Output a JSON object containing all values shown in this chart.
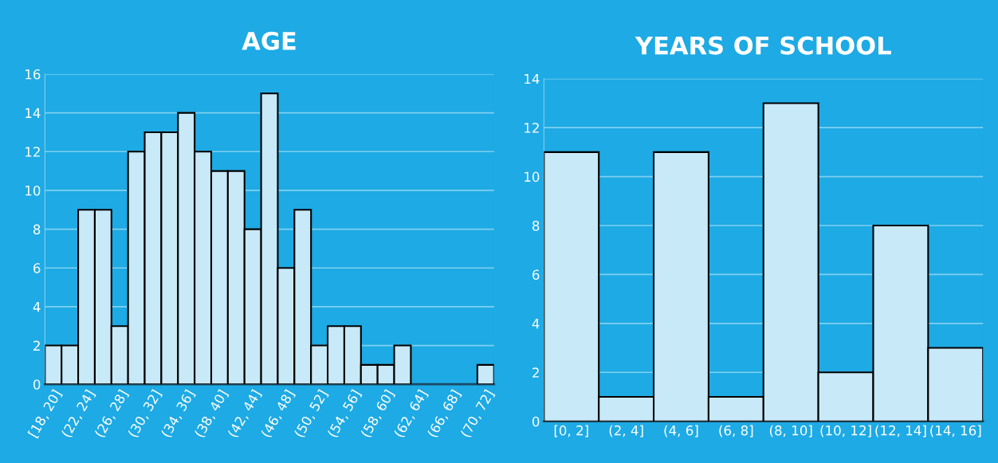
{
  "chart_data": [
    {
      "type": "bar",
      "title": "AGE",
      "categories": [
        "[18, 20]",
        null,
        "(22, 24]",
        null,
        "(26, 28]",
        null,
        "(30, 32]",
        null,
        "(34, 36]",
        null,
        "(38, 40]",
        null,
        "(42, 44]",
        null,
        "(46, 48]",
        null,
        "(50, 52]",
        null,
        "(54, 56]",
        null,
        "(58, 60]",
        null,
        "(62, 64]",
        null,
        "(66, 68]",
        null,
        "(70, 72]"
      ],
      "values": [
        2,
        2,
        9,
        9,
        3,
        12,
        13,
        13,
        14,
        12,
        11,
        11,
        8,
        15,
        6,
        9,
        2,
        3,
        3,
        1,
        1,
        2,
        0,
        0,
        0,
        0,
        1
      ],
      "color": "#c8e9f7",
      "ylim": [
        0,
        16
      ],
      "yticks": [
        0,
        2,
        4,
        6,
        8,
        10,
        12,
        14,
        16
      ],
      "grid": "y"
    },
    {
      "type": "bar",
      "title": "YEARS OF SCHOOL",
      "categories": [
        "[0, 2]",
        "(2, 4]",
        "(4, 6]",
        "(6, 8]",
        "(8, 10]",
        "(10, 12]",
        "(12, 14]",
        "(14, 16]"
      ],
      "values": [
        11,
        1,
        11,
        1,
        13,
        2,
        8,
        3
      ],
      "color": "#c8e9f7",
      "ylim": [
        0,
        14
      ],
      "yticks": [
        0,
        2,
        4,
        6,
        8,
        10,
        12,
        14
      ],
      "grid": "y"
    }
  ]
}
